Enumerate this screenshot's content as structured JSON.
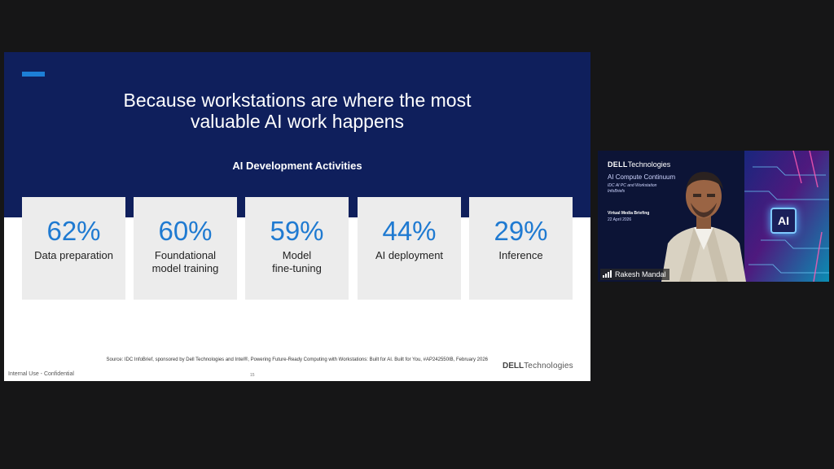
{
  "slide": {
    "title": "Because workstations are where the most\nvaluable AI work happens",
    "section_title": "AI Development Activities",
    "activities": [
      {
        "percent": "62%",
        "label": "Data preparation"
      },
      {
        "percent": "60%",
        "label": "Foundational\nmodel training"
      },
      {
        "percent": "59%",
        "label": "Model\nfine-tuning"
      },
      {
        "percent": "44%",
        "label": "AI deployment"
      },
      {
        "percent": "29%",
        "label": "Inference"
      }
    ],
    "source": "Source: IDC InfoBrief, sponsored by Dell Technologies and Intel®, Powering Future-Ready Computing with Workstations: Built for AI. Built for You, #AP242550IB, February 2026",
    "logo_dell": "DELL",
    "logo_tech": "Technologies",
    "footer_left": "Internal Use - Confidential",
    "page_number": "15",
    "colors": {
      "header_bg": "#0f1f5c",
      "accent": "#1d7fd6",
      "percent": "#1f7ad1",
      "card_bg": "#ececec"
    }
  },
  "video": {
    "brand_dell": "DELL",
    "brand_tech": "Technologies",
    "line1": "AI Compute Continuum",
    "line2": "IDC AI PC and Workstation",
    "line3": "InfoBriefs",
    "line4": "Virtual Media Briefing",
    "line5": "22 April 2026",
    "chip_text": "AI",
    "participant_name": "Rakesh Mandal",
    "signal_icon": "signal-bars-icon"
  }
}
